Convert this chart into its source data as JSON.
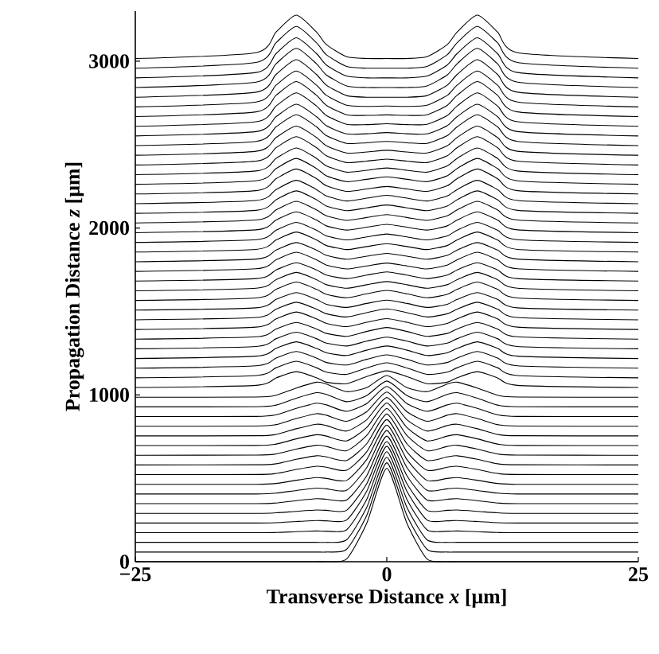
{
  "chart_data": {
    "type": "line",
    "xlabel": "Transverse Distance   *x*  [μm]",
    "ylabel": "Propagation  Distance    *z*  [μm]",
    "x": [
      -25,
      -13,
      -11,
      -9,
      -7,
      -6,
      -4,
      -2,
      0,
      2,
      4,
      6,
      7,
      9,
      11,
      13,
      25
    ],
    "xlim": [
      -25,
      25
    ],
    "xticks": [
      {
        "value": -25,
        "label": "−25"
      },
      0,
      25
    ],
    "ylim": [
      0,
      3300
    ],
    "yticks": [
      0,
      1000,
      2000,
      3000
    ],
    "color": "#000000",
    "series": [
      {
        "values": [
          0,
          0,
          0,
          0,
          0,
          0,
          16,
          230,
          560,
          230,
          16,
          0,
          0,
          0,
          0,
          0,
          0
        ]
      },
      {
        "values": [
          58,
          58,
          58,
          58,
          58,
          58,
          74,
          277,
          593,
          277,
          74,
          58,
          58,
          58,
          58,
          58,
          58
        ]
      },
      {
        "values": [
          116,
          116,
          116,
          116,
          116,
          116,
          131,
          325,
          626,
          325,
          131,
          116,
          116,
          116,
          116,
          116,
          116
        ]
      },
      {
        "values": [
          174,
          174,
          175,
          180,
          184,
          183,
          191,
          373,
          659,
          373,
          191,
          183,
          184,
          180,
          175,
          174,
          174
        ]
      },
      {
        "values": [
          232,
          232,
          234,
          241,
          247,
          245,
          250,
          422,
          692,
          422,
          250,
          245,
          247,
          241,
          234,
          232,
          232
        ]
      },
      {
        "values": [
          290,
          290,
          293,
          302,
          310,
          308,
          308,
          467,
          720,
          467,
          308,
          308,
          310,
          302,
          293,
          290,
          290
        ]
      },
      {
        "values": [
          348,
          348,
          352,
          366,
          378,
          374,
          370,
          515,
          753,
          515,
          370,
          374,
          378,
          366,
          352,
          348,
          348
        ]
      },
      {
        "values": [
          406,
          406,
          411,
          427,
          441,
          437,
          428,
          564,
          786,
          564,
          428,
          437,
          441,
          427,
          411,
          406,
          406
        ]
      },
      {
        "values": [
          464,
          464,
          469,
          488,
          504,
          499,
          487,
          612,
          819,
          612,
          487,
          499,
          504,
          488,
          469,
          464,
          464
        ]
      },
      {
        "values": [
          522,
          523,
          529,
          553,
          572,
          566,
          548,
          659,
          852,
          659,
          548,
          566,
          572,
          553,
          529,
          523,
          522
        ]
      },
      {
        "values": [
          580,
          581,
          587,
          614,
          635,
          628,
          607,
          707,
          885,
          707,
          607,
          628,
          635,
          614,
          587,
          581,
          580
        ]
      },
      {
        "values": [
          638,
          639,
          646,
          675,
          698,
          691,
          665,
          756,
          918,
          756,
          665,
          691,
          698,
          675,
          646,
          639,
          638
        ]
      },
      {
        "values": [
          696,
          697,
          705,
          736,
          761,
          753,
          724,
          804,
          951,
          804,
          724,
          753,
          761,
          736,
          705,
          697,
          696
        ]
      },
      {
        "values": [
          754,
          755,
          763,
          797,
          824,
          816,
          783,
          851,
          984,
          851,
          783,
          816,
          824,
          797,
          763,
          755,
          754
        ]
      },
      {
        "values": [
          812,
          813,
          822,
          858,
          887,
          878,
          842,
          899,
          1017,
          899,
          842,
          878,
          887,
          858,
          822,
          813,
          812
        ]
      },
      {
        "values": [
          870,
          871,
          881,
          919,
          950,
          940,
          901,
          948,
          1050,
          948,
          901,
          940,
          950,
          919,
          881,
          871,
          870
        ]
      },
      {
        "values": [
          928,
          929,
          939,
          980,
          1013,
          1003,
          959,
          996,
          1083,
          996,
          959,
          1003,
          1013,
          980,
          939,
          929,
          928
        ]
      },
      {
        "values": [
          986,
          987,
          998,
          1041,
          1076,
          1065,
          1019,
          1043,
          1116,
          1043,
          1019,
          1065,
          1076,
          1041,
          998,
          987,
          986
        ]
      },
      {
        "values": [
          1044,
          1057,
          1102,
          1139,
          1103,
          1076,
          1067,
          1110,
          1144,
          1110,
          1067,
          1076,
          1103,
          1139,
          1102,
          1057,
          1044
        ]
      },
      {
        "values": [
          1102,
          1116,
          1163,
          1202,
          1163,
          1136,
          1123,
          1161,
          1192,
          1161,
          1123,
          1136,
          1163,
          1202,
          1163,
          1116,
          1102
        ]
      },
      {
        "values": [
          1160,
          1174,
          1221,
          1260,
          1221,
          1194,
          1179,
          1213,
          1240,
          1213,
          1179,
          1194,
          1221,
          1260,
          1221,
          1174,
          1160
        ]
      },
      {
        "values": [
          1218,
          1232,
          1279,
          1318,
          1279,
          1252,
          1236,
          1268,
          1293,
          1268,
          1236,
          1252,
          1279,
          1318,
          1279,
          1232,
          1218
        ]
      },
      {
        "values": [
          1276,
          1290,
          1337,
          1376,
          1337,
          1310,
          1293,
          1322,
          1346,
          1322,
          1293,
          1310,
          1337,
          1376,
          1337,
          1290,
          1276
        ]
      },
      {
        "values": [
          1334,
          1348,
          1395,
          1434,
          1395,
          1368,
          1351,
          1380,
          1404,
          1380,
          1351,
          1368,
          1395,
          1434,
          1395,
          1348,
          1334
        ]
      },
      {
        "values": [
          1392,
          1406,
          1456,
          1497,
          1456,
          1428,
          1409,
          1435,
          1457,
          1435,
          1409,
          1428,
          1456,
          1497,
          1456,
          1406,
          1392
        ]
      },
      {
        "values": [
          1450,
          1464,
          1514,
          1555,
          1514,
          1486,
          1467,
          1493,
          1515,
          1493,
          1467,
          1486,
          1514,
          1555,
          1514,
          1464,
          1450
        ]
      },
      {
        "values": [
          1508,
          1522,
          1572,
          1613,
          1572,
          1543,
          1524,
          1548,
          1568,
          1548,
          1524,
          1543,
          1572,
          1613,
          1572,
          1522,
          1508
        ]
      },
      {
        "values": [
          1566,
          1581,
          1633,
          1676,
          1633,
          1602,
          1582,
          1606,
          1626,
          1606,
          1582,
          1602,
          1633,
          1676,
          1633,
          1581,
          1566
        ]
      },
      {
        "values": [
          1624,
          1639,
          1691,
          1734,
          1691,
          1660,
          1639,
          1660,
          1679,
          1660,
          1639,
          1660,
          1691,
          1734,
          1691,
          1639,
          1624
        ]
      },
      {
        "values": [
          1682,
          1697,
          1749,
          1792,
          1749,
          1718,
          1697,
          1718,
          1737,
          1718,
          1697,
          1718,
          1749,
          1792,
          1749,
          1697,
          1682
        ]
      },
      {
        "values": [
          1740,
          1756,
          1810,
          1855,
          1810,
          1778,
          1755,
          1773,
          1790,
          1773,
          1755,
          1778,
          1810,
          1855,
          1810,
          1756,
          1740
        ]
      },
      {
        "values": [
          1798,
          1814,
          1868,
          1913,
          1868,
          1836,
          1813,
          1831,
          1848,
          1831,
          1813,
          1836,
          1868,
          1913,
          1868,
          1814,
          1798
        ]
      },
      {
        "values": [
          1856,
          1872,
          1929,
          1976,
          1929,
          1895,
          1871,
          1889,
          1906,
          1889,
          1871,
          1895,
          1929,
          1976,
          1929,
          1872,
          1856
        ]
      },
      {
        "values": [
          1914,
          1930,
          1987,
          2034,
          1987,
          1953,
          1929,
          1947,
          1964,
          1947,
          1929,
          1953,
          1987,
          2034,
          1987,
          1930,
          1914
        ]
      },
      {
        "values": [
          1972,
          1989,
          2048,
          2097,
          2048,
          2013,
          1988,
          2005,
          2022,
          2005,
          1988,
          2013,
          2048,
          2097,
          2048,
          1989,
          1972
        ]
      },
      {
        "values": [
          2030,
          2048,
          2109,
          2160,
          2109,
          2073,
          2046,
          2063,
          2080,
          2063,
          2046,
          2073,
          2109,
          2160,
          2109,
          2048,
          2030
        ]
      },
      {
        "values": [
          2088,
          2106,
          2170,
          2223,
          2170,
          2132,
          2104,
          2121,
          2138,
          2121,
          2104,
          2132,
          2170,
          2223,
          2170,
          2106,
          2088
        ]
      },
      {
        "values": [
          2146,
          2165,
          2231,
          2286,
          2231,
          2192,
          2162,
          2179,
          2196,
          2179,
          2162,
          2192,
          2231,
          2286,
          2231,
          2165,
          2146
        ]
      },
      {
        "values": [
          2204,
          2224,
          2296,
          2354,
          2296,
          2253,
          2220,
          2234,
          2249,
          2234,
          2220,
          2253,
          2296,
          2354,
          2296,
          2224,
          2204
        ]
      },
      {
        "values": [
          2262,
          2283,
          2357,
          2417,
          2357,
          2313,
          2278,
          2292,
          2307,
          2292,
          2278,
          2313,
          2357,
          2417,
          2357,
          2283,
          2262
        ]
      },
      {
        "values": [
          2320,
          2342,
          2418,
          2480,
          2418,
          2372,
          2335,
          2346,
          2360,
          2346,
          2335,
          2372,
          2418,
          2480,
          2418,
          2342,
          2320
        ]
      },
      {
        "values": [
          2378,
          2401,
          2482,
          2548,
          2482,
          2433,
          2392,
          2401,
          2413,
          2401,
          2392,
          2433,
          2482,
          2548,
          2482,
          2401,
          2378
        ]
      },
      {
        "values": [
          2436,
          2460,
          2543,
          2611,
          2543,
          2493,
          2450,
          2456,
          2466,
          2456,
          2450,
          2493,
          2543,
          2611,
          2543,
          2460,
          2436
        ]
      },
      {
        "values": [
          2494,
          2519,
          2607,
          2679,
          2607,
          2554,
          2507,
          2511,
          2519,
          2511,
          2507,
          2554,
          2607,
          2679,
          2607,
          2519,
          2494
        ]
      },
      {
        "values": [
          2552,
          2578,
          2668,
          2742,
          2668,
          2613,
          2564,
          2565,
          2572,
          2565,
          2564,
          2613,
          2668,
          2742,
          2668,
          2578,
          2552
        ]
      },
      {
        "values": [
          2610,
          2637,
          2732,
          2810,
          2732,
          2674,
          2622,
          2620,
          2625,
          2620,
          2622,
          2674,
          2732,
          2810,
          2732,
          2637,
          2610
        ]
      },
      {
        "values": [
          2668,
          2696,
          2796,
          2878,
          2796,
          2735,
          2679,
          2675,
          2678,
          2675,
          2679,
          2735,
          2796,
          2878,
          2796,
          2696,
          2668
        ]
      },
      {
        "values": [
          2726,
          2755,
          2857,
          2941,
          2857,
          2795,
          2736,
          2729,
          2731,
          2729,
          2736,
          2795,
          2857,
          2941,
          2857,
          2755,
          2726
        ]
      },
      {
        "values": [
          2784,
          2814,
          2921,
          3009,
          2921,
          2856,
          2794,
          2784,
          2784,
          2784,
          2794,
          2856,
          2921,
          3009,
          2921,
          2814,
          2784
        ]
      },
      {
        "values": [
          2842,
          2874,
          2985,
          3077,
          2985,
          2917,
          2852,
          2842,
          2842,
          2842,
          2852,
          2917,
          2985,
          3077,
          2985,
          2874,
          2842
        ]
      },
      {
        "values": [
          2900,
          2932,
          3046,
          3140,
          3046,
          2977,
          2911,
          2900,
          2900,
          2900,
          2911,
          2977,
          3046,
          3140,
          3046,
          2932,
          2900
        ]
      },
      {
        "values": [
          2958,
          2992,
          3111,
          3208,
          3111,
          3038,
          2969,
          2958,
          2958,
          2958,
          2969,
          3038,
          3111,
          3208,
          3111,
          2992,
          2958
        ]
      },
      {
        "values": [
          3016,
          3051,
          3175,
          3276,
          3175,
          3099,
          3027,
          3016,
          3016,
          3016,
          3027,
          3099,
          3175,
          3276,
          3175,
          3051,
          3016
        ]
      }
    ]
  }
}
